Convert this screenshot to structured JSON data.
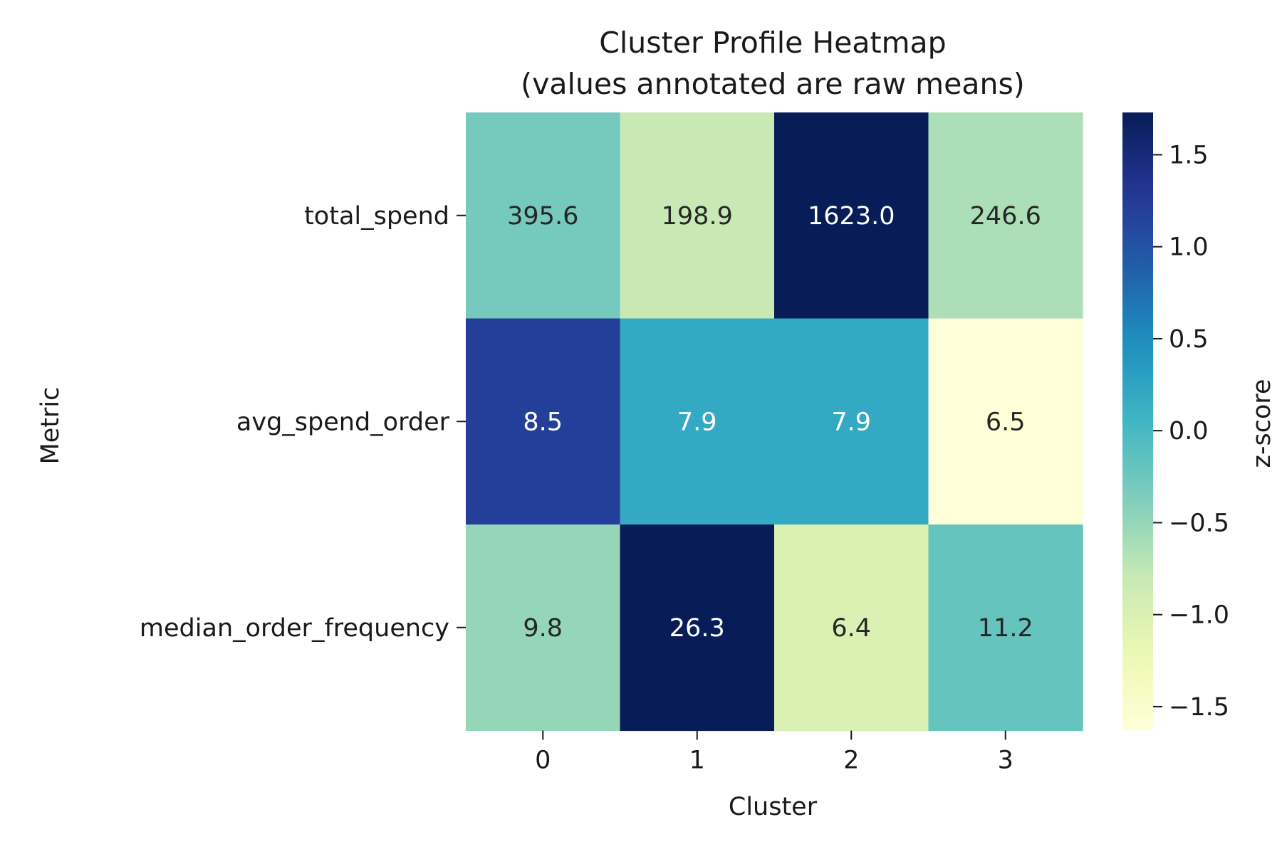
{
  "chart_data": {
    "type": "heatmap",
    "title": [
      "Cluster Profile Heatmap",
      "(values annotated are raw means)"
    ],
    "xlabel": "Cluster",
    "ylabel": "Metric",
    "x_categories": [
      "0",
      "1",
      "2",
      "3"
    ],
    "y_categories": [
      "total_spend",
      "avg_spend_order",
      "median_order_frequency"
    ],
    "annotations": [
      [
        "395.6",
        "198.9",
        "1623.0",
        "246.6"
      ],
      [
        "8.5",
        "7.9",
        "7.9",
        "6.5"
      ],
      [
        "9.8",
        "26.3",
        "6.4",
        "11.2"
      ]
    ],
    "z_scores": [
      [
        -0.3,
        -0.8,
        1.73,
        -0.63
      ],
      [
        1.2,
        0.2,
        0.2,
        -1.63
      ],
      [
        -0.5,
        1.73,
        -1.0,
        -0.2
      ]
    ],
    "colorbar": {
      "label": "z-score",
      "range": [
        -1.63,
        1.73
      ],
      "ticks": [
        -1.5,
        -1.0,
        -0.5,
        0.0,
        0.5,
        1.0,
        1.5
      ],
      "tick_labels": [
        "−1.5",
        "−1.0",
        "−0.5",
        "0.0",
        "0.5",
        "1.0",
        "1.5"
      ],
      "colormap": "YlGnBu"
    },
    "grid": false
  }
}
